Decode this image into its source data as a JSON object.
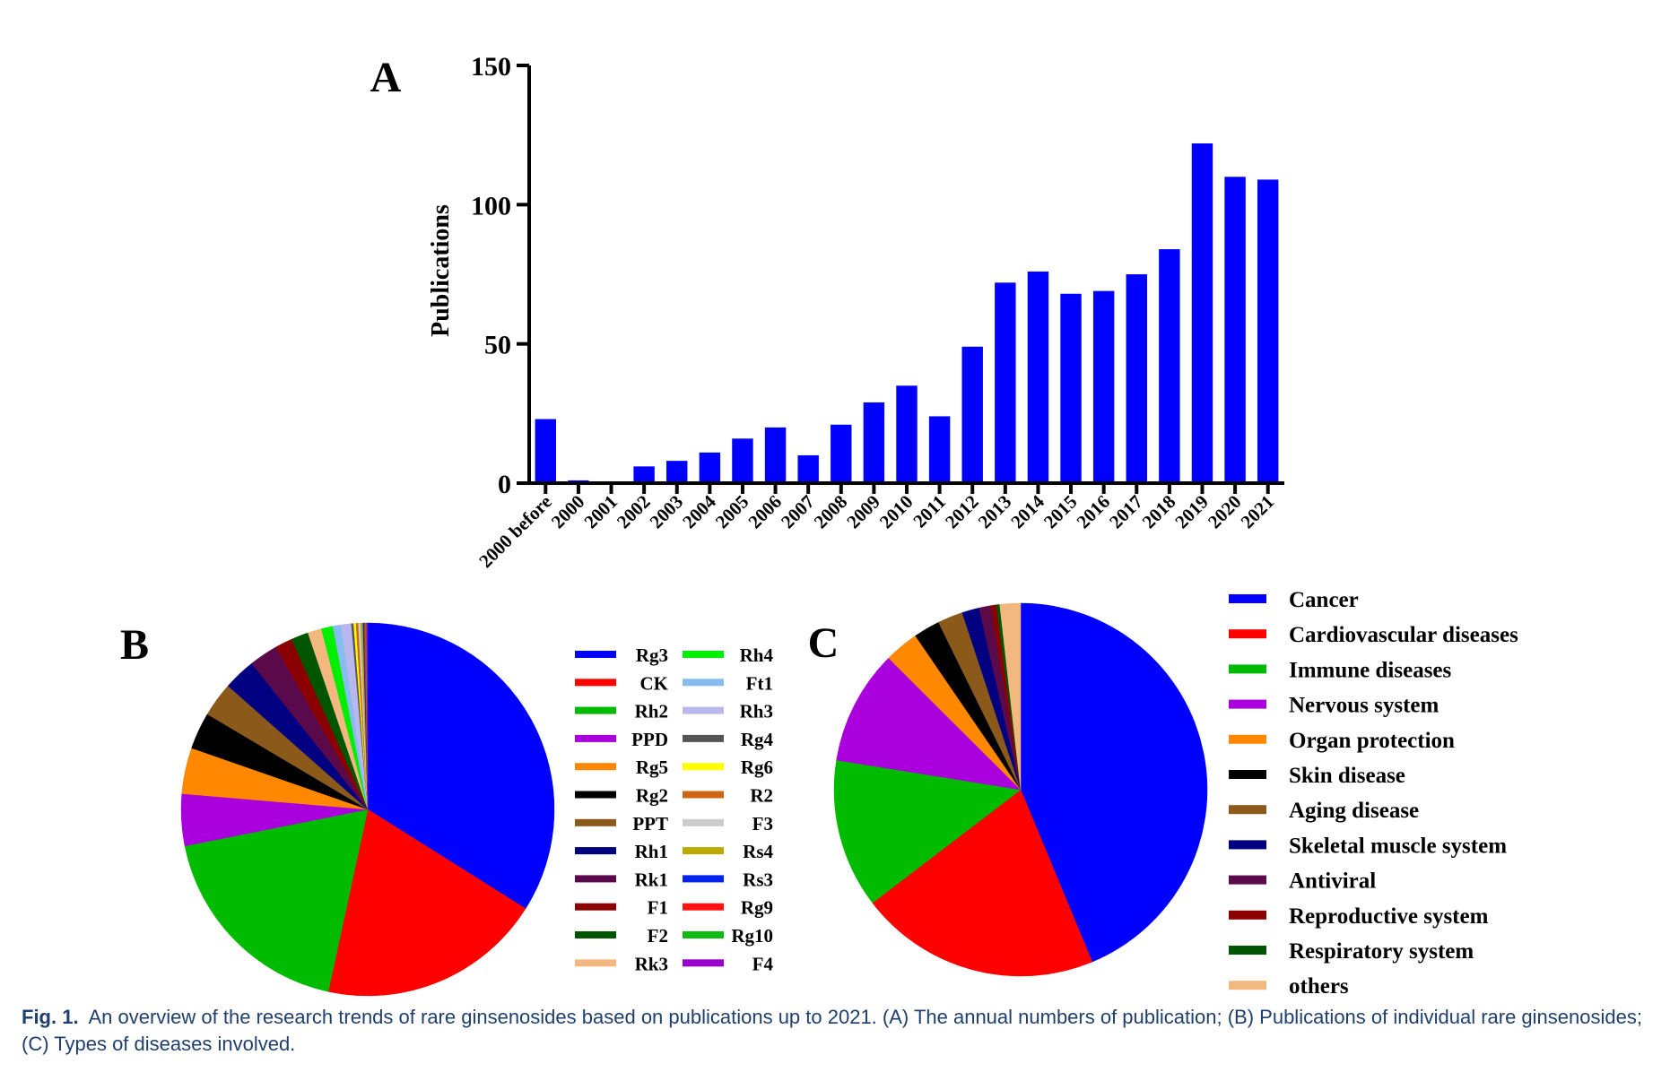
{
  "chart_data": [
    {
      "id": "A",
      "type": "bar",
      "panel_label": "A",
      "ylabel": "Publications",
      "ylim": [
        0,
        150
      ],
      "yticks": [
        0,
        50,
        100,
        150
      ],
      "bar_color": "#0000ff",
      "categories": [
        "2000 before",
        "2000",
        "2001",
        "2002",
        "2003",
        "2004",
        "2005",
        "2006",
        "2007",
        "2008",
        "2009",
        "2010",
        "2011",
        "2012",
        "2013",
        "2014",
        "2015",
        "2016",
        "2017",
        "2018",
        "2019",
        "2020",
        "2021"
      ],
      "values": [
        23,
        1,
        0,
        6,
        8,
        11,
        16,
        20,
        10,
        21,
        29,
        35,
        24,
        49,
        72,
        76,
        68,
        69,
        75,
        84,
        122,
        110,
        109
      ]
    },
    {
      "id": "B",
      "type": "pie",
      "panel_label": "B",
      "legend_position": "right",
      "slices": [
        {
          "label": "Rg3",
          "value": 34.0,
          "color": "#0000ff"
        },
        {
          "label": "CK",
          "value": 19.5,
          "color": "#ff0000"
        },
        {
          "label": "Rh2",
          "value": 18.5,
          "color": "#00bb00"
        },
        {
          "label": "PPD",
          "value": 4.5,
          "color": "#aa00dd"
        },
        {
          "label": "Rg5",
          "value": 4.0,
          "color": "#ff8800"
        },
        {
          "label": "Rg2",
          "value": 3.2,
          "color": "#000000"
        },
        {
          "label": "PPT",
          "value": 3.0,
          "color": "#8b5a1b"
        },
        {
          "label": "Rh1",
          "value": 2.8,
          "color": "#000080"
        },
        {
          "label": "Rk1",
          "value": 2.5,
          "color": "#5a0a4a"
        },
        {
          "label": "F1",
          "value": 1.5,
          "color": "#8b0000"
        },
        {
          "label": "F2",
          "value": 1.5,
          "color": "#005500"
        },
        {
          "label": "Rk3",
          "value": 1.2,
          "color": "#f2b880"
        },
        {
          "label": "Rh4",
          "value": 1.0,
          "color": "#00ee00"
        },
        {
          "label": "Ft1",
          "value": 0.7,
          "color": "#88bbee"
        },
        {
          "label": "Rh3",
          "value": 0.9,
          "color": "#b8b8ee"
        },
        {
          "label": "Rg4",
          "value": 0.2,
          "color": "#555555"
        },
        {
          "label": "Rg6",
          "value": 0.2,
          "color": "#ffff00"
        },
        {
          "label": "R2",
          "value": 0.2,
          "color": "#cc6611"
        },
        {
          "label": "F3",
          "value": 0.2,
          "color": "#cccccc"
        },
        {
          "label": "Rs4",
          "value": 0.2,
          "color": "#bbaa00"
        },
        {
          "label": "Rs3",
          "value": 0.1,
          "color": "#0022ee"
        },
        {
          "label": "Rg9",
          "value": 0.1,
          "color": "#ff1111"
        },
        {
          "label": "Rg10",
          "value": 0.1,
          "color": "#11bb11"
        },
        {
          "label": "F4",
          "value": 0.1,
          "color": "#9900cc"
        }
      ]
    },
    {
      "id": "C",
      "type": "pie",
      "panel_label": "C",
      "legend_position": "right",
      "slices": [
        {
          "label": "Cancer",
          "value": 44.0,
          "color": "#0000ff"
        },
        {
          "label": "Cardiovascular diseases",
          "value": 21.0,
          "color": "#ff0000"
        },
        {
          "label": "Immune diseases",
          "value": 13.0,
          "color": "#00bb00"
        },
        {
          "label": "Nervous system",
          "value": 10.0,
          "color": "#aa00dd"
        },
        {
          "label": "Organ protection",
          "value": 3.0,
          "color": "#ff8800"
        },
        {
          "label": "Skin disease",
          "value": 2.3,
          "color": "#000000"
        },
        {
          "label": "Aging disease",
          "value": 2.2,
          "color": "#8b5a1b"
        },
        {
          "label": "Skeletal muscle system",
          "value": 1.5,
          "color": "#000080"
        },
        {
          "label": "Antiviral",
          "value": 1.0,
          "color": "#5a0a4a"
        },
        {
          "label": "Reproductive system",
          "value": 0.5,
          "color": "#8b0000"
        },
        {
          "label": "Respiratory system",
          "value": 0.3,
          "color": "#005500"
        },
        {
          "label": "others",
          "value": 1.8,
          "color": "#f2b880"
        }
      ]
    }
  ],
  "caption": {
    "label": "Fig. 1.",
    "text": "An overview of the research trends of rare ginsenosides based on publications up to 2021. (A) The annual numbers of publication; (B) Publications of individual rare ginsenosides; (C) Types of diseases involved."
  }
}
